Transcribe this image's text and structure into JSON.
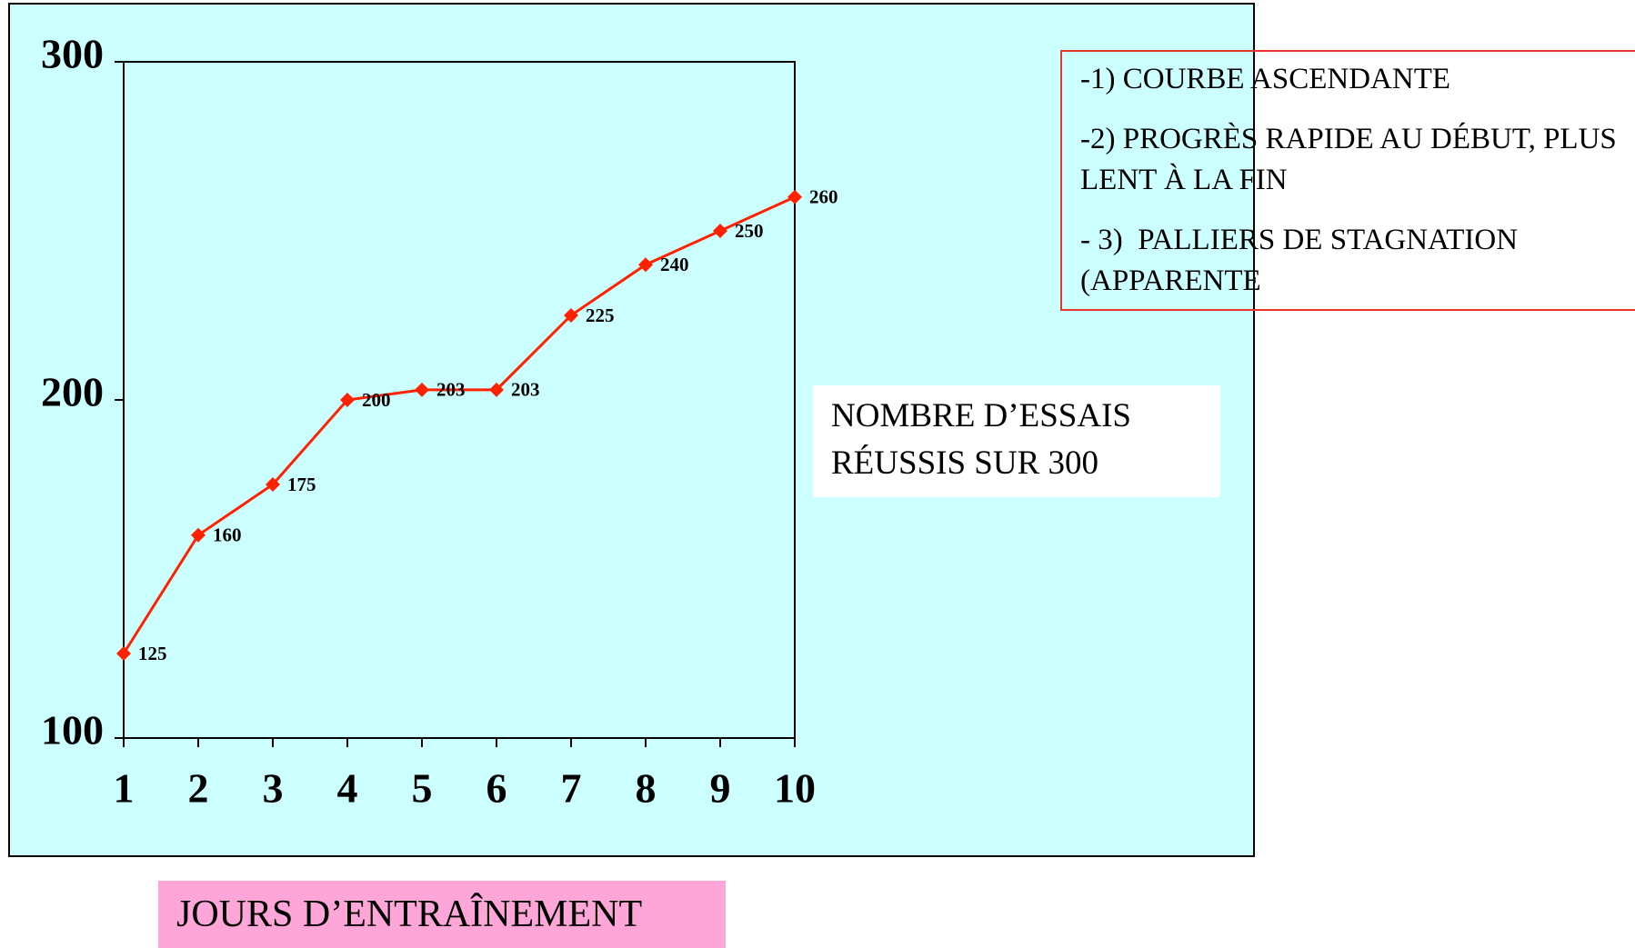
{
  "chart_data": {
    "type": "line",
    "x": [
      1,
      2,
      3,
      4,
      5,
      6,
      7,
      8,
      9,
      10
    ],
    "xlim": [
      1,
      10
    ],
    "xticks": [
      1,
      2,
      3,
      4,
      5,
      6,
      7,
      8,
      9,
      10
    ],
    "ylim": [
      100,
      300
    ],
    "yticks": [
      100,
      200,
      300
    ],
    "series": [
      {
        "color": "#ff2200",
        "values": [
          125,
          160,
          175,
          200,
          203,
          203,
          225,
          240,
          250,
          260
        ]
      }
    ],
    "data_labels": true,
    "y_label": "NOMBRE D’ESSAIS RÉUSSIS SUR 300",
    "x_label": "JOURS D’ENTRAÎNEMENT",
    "annotations": [
      "-1) COURBE ASCENDANTE",
      "-2) PROGRÈS RAPIDE AU DÉBUT, PLUS LENT À LA FIN",
      "- 3)  PALLIERS DE STAGNATION (APPARENTE"
    ]
  }
}
